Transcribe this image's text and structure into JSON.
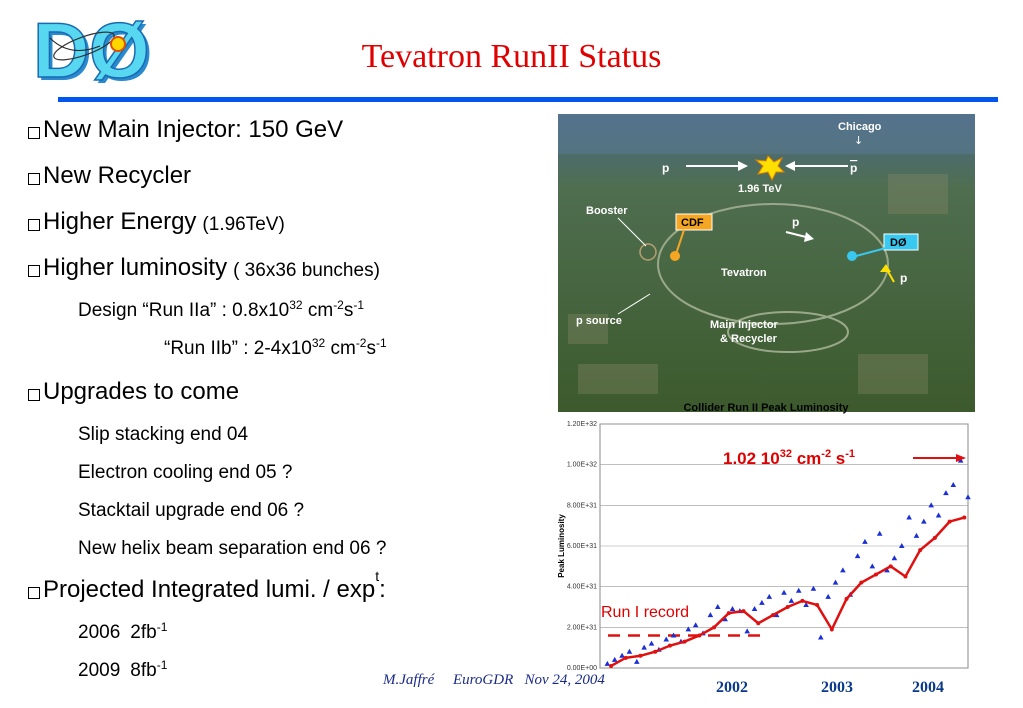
{
  "header": {
    "title": "Tevatron RunII Status",
    "logo_name": "d0-experiment-logo-icon"
  },
  "bullets": [
    {
      "level": 1,
      "text": "New Main Injector: 150 GeV"
    },
    {
      "level": 1,
      "text": "New Recycler"
    },
    {
      "level": 1,
      "text": "Higher Energy",
      "note": "(1.96TeV)"
    },
    {
      "level": 1,
      "text": "Higher luminosity",
      "note": "( 36x36 bunches)"
    },
    {
      "level": 2,
      "text": "Design “Run IIa” : 0.8x10",
      "exp1": "32",
      "mid": " cm",
      "exp2": "-2",
      "s": "s",
      "exp3": "-1"
    },
    {
      "level": 3,
      "text": "“Run IIb” : 2-4x10",
      "exp1": "32",
      "mid": " cm",
      "exp2": "-2",
      "s": "s",
      "exp3": "-1"
    },
    {
      "level": 1,
      "text": "Upgrades to come"
    },
    {
      "level": 2,
      "text": "Slip stacking end 04"
    },
    {
      "level": 2,
      "text": "Electron cooling end 05 ?"
    },
    {
      "level": 2,
      "text": "Stacktail upgrade end 06 ?"
    },
    {
      "level": 2,
      "text": "New helix beam separation end 06 ?"
    },
    {
      "level": 1,
      "text": "Projected Integrated lumi. / exp",
      "sup": "t",
      "tail": ":"
    },
    {
      "level": 2,
      "year": "2006",
      "value": "2fb",
      "exp": "-1"
    },
    {
      "level": 2,
      "year": "2009",
      "value": "8fb",
      "exp": "-1"
    }
  ],
  "aerial_map": {
    "labels": {
      "chicago": "Chicago",
      "arrow_down": "↓",
      "p_left": "p",
      "p_bar_right": "p",
      "energy": "1.96 TeV",
      "booster": "Booster",
      "cdf": "CDF",
      "p_mid": "p",
      "d0": "DØ",
      "tevatron": "Tevatron",
      "p_right": "p",
      "p_source": "p source",
      "main_injector": "Main Injector",
      "recycler": "& Recycler"
    },
    "colors": {
      "cdf_box": "#f5a623",
      "d0_box": "#38c8f0",
      "label": "#ffffff",
      "highlight": "#ffe000"
    }
  },
  "chart_data": {
    "type": "scatter",
    "title": "Collider Run II Peak Luminosity",
    "ylabel": "Peak Luminosity",
    "ylim": [
      0,
      1.2e+32
    ],
    "yticks": [
      "0.00E+00",
      "2.00E+31",
      "4.00E+31",
      "6.00E+31",
      "8.00E+31",
      "1.00E+32",
      "1.20E+32"
    ],
    "ytick_values": [
      0,
      2e+31,
      4e+31,
      6e+31,
      8e+31,
      1e+32,
      1.2e+32
    ],
    "year_labels": [
      "2002",
      "2003",
      "2004"
    ],
    "annotations": {
      "peak": {
        "value": "1.02 10",
        "exp": "32",
        "unit": " cm",
        "unit_exp": "-2",
        "s": " s",
        "s_exp": "-1"
      },
      "run1_record": {
        "text": "Run I record",
        "value": 1.6e+31
      }
    },
    "series": [
      {
        "color": "#1a2fd6",
        "marker": "triangle",
        "x": [
          0.02,
          0.04,
          0.06,
          0.08,
          0.1,
          0.12,
          0.14,
          0.16,
          0.18,
          0.2,
          0.22,
          0.24,
          0.26,
          0.28,
          0.3,
          0.32,
          0.34,
          0.36,
          0.38,
          0.4,
          0.42,
          0.44,
          0.46,
          0.48,
          0.5,
          0.52,
          0.54,
          0.56,
          0.58,
          0.6,
          0.62,
          0.64,
          0.66,
          0.68,
          0.7,
          0.72,
          0.74,
          0.76,
          0.78,
          0.8,
          0.82,
          0.84,
          0.86,
          0.88,
          0.9,
          0.92,
          0.94,
          0.96,
          0.98,
          1.0
        ],
        "y": [
          2e+30,
          4e+30,
          6e+30,
          8e+30,
          3e+30,
          1e+31,
          1.2e+31,
          9e+30,
          1.4e+31,
          1.6e+31,
          1.3e+31,
          1.9e+31,
          2.1e+31,
          1.7e+31,
          2.6e+31,
          3e+31,
          2.4e+31,
          2.9e+31,
          2.8e+31,
          1.8e+31,
          2.9e+31,
          3.2e+31,
          3.5e+31,
          2.6e+31,
          3.7e+31,
          3.3e+31,
          3.8e+31,
          3.1e+31,
          3.9e+31,
          1.5e+31,
          3.5e+31,
          4.2e+31,
          4.8e+31,
          3.6e+31,
          5.5e+31,
          6.2e+31,
          5e+31,
          6.6e+31,
          4.8e+31,
          5.4e+31,
          6e+31,
          7.4e+31,
          6.5e+31,
          7.2e+31,
          8e+31,
          7.5e+31,
          8.6e+31,
          9e+31,
          1.02e+32,
          8.4e+31
        ]
      },
      {
        "color": "#e01010",
        "marker": "line",
        "x": [
          0.03,
          0.07,
          0.11,
          0.15,
          0.19,
          0.23,
          0.27,
          0.31,
          0.35,
          0.39,
          0.43,
          0.47,
          0.51,
          0.55,
          0.59,
          0.63,
          0.67,
          0.71,
          0.75,
          0.79,
          0.83,
          0.87,
          0.91,
          0.95,
          0.99
        ],
        "y": [
          1e+30,
          5e+30,
          6e+30,
          8e+30,
          1.1e+31,
          1.3e+31,
          1.6e+31,
          2e+31,
          2.7e+31,
          2.8e+31,
          2.2e+31,
          2.6e+31,
          3e+31,
          3.3e+31,
          3.1e+31,
          1.9e+31,
          3.4e+31,
          4.2e+31,
          4.6e+31,
          5e+31,
          4.5e+31,
          5.8e+31,
          6.4e+31,
          7.2e+31,
          7.4e+31
        ]
      }
    ]
  },
  "footer": {
    "author": "M.Jaffré",
    "event": "EuroGDR",
    "date": "Nov 24, 2004"
  }
}
